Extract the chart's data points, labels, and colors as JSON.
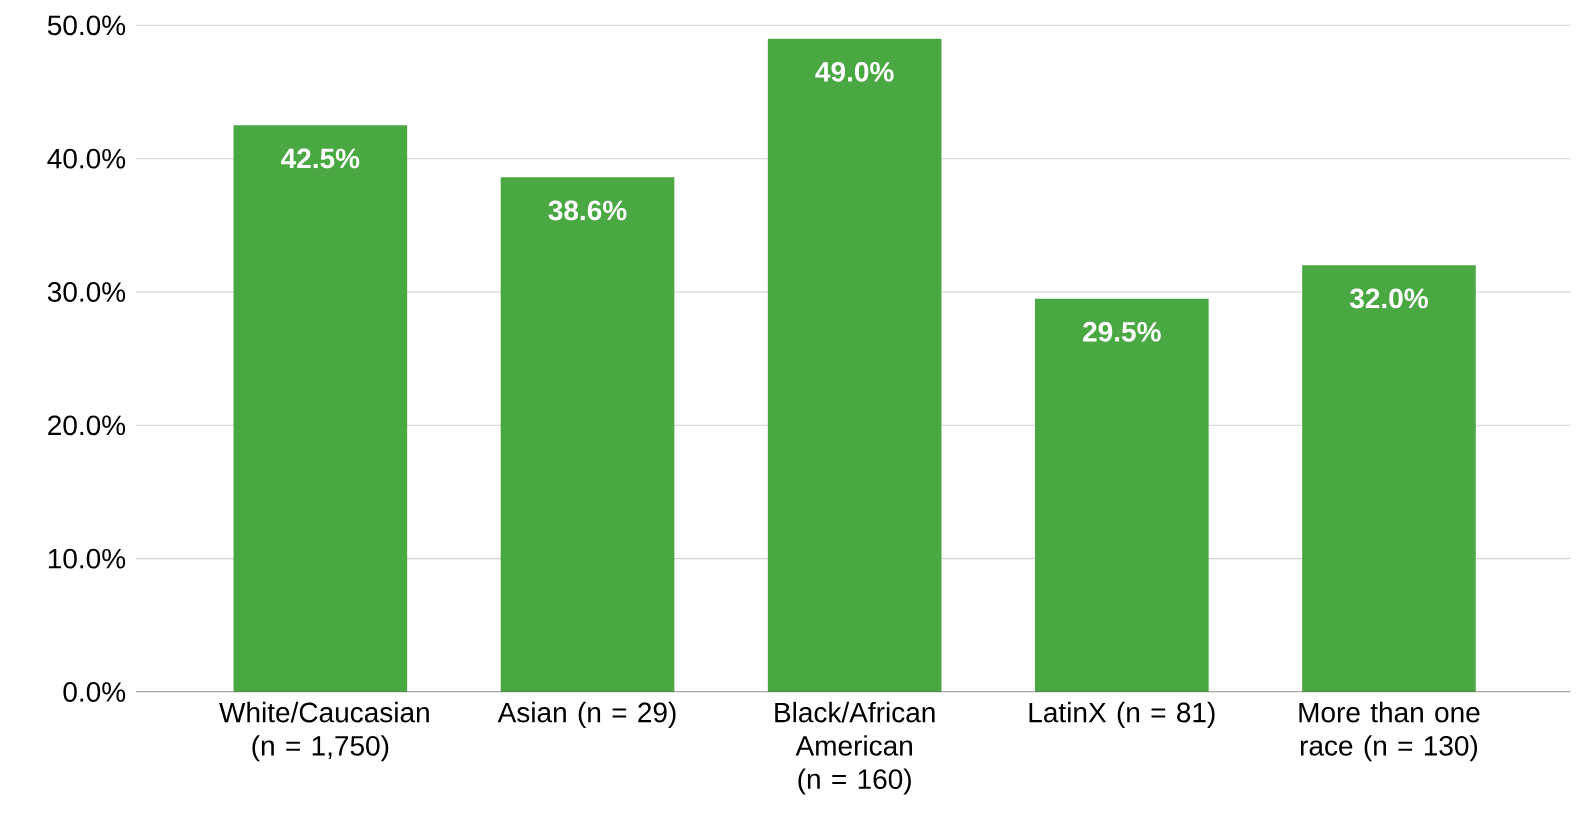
{
  "chart_data": {
    "type": "bar",
    "categories": [
      "White/Caucasian (n = 1,750)",
      "Asian (n = 29)",
      "Black/African American (n = 160)",
      "LatinX (n = 81)",
      "More than one race   (n = 130)"
    ],
    "values": [
      42.5,
      38.6,
      49.0,
      29.5,
      32.0
    ],
    "value_labels": [
      "42.5%",
      "38.6%",
      "49.0%",
      "29.5%",
      "32.0%"
    ],
    "color": "#4aa843",
    "ylim": [
      0,
      50
    ],
    "yticks": [
      {
        "value": 0,
        "label": "0.0%"
      },
      {
        "value": 10,
        "label": "10.0%"
      },
      {
        "value": 20,
        "label": "20.0%"
      },
      {
        "value": 30,
        "label": "30.0%"
      },
      {
        "value": 40,
        "label": "40.0%"
      },
      {
        "value": 50,
        "label": "50.0%"
      }
    ],
    "grid": "y"
  }
}
